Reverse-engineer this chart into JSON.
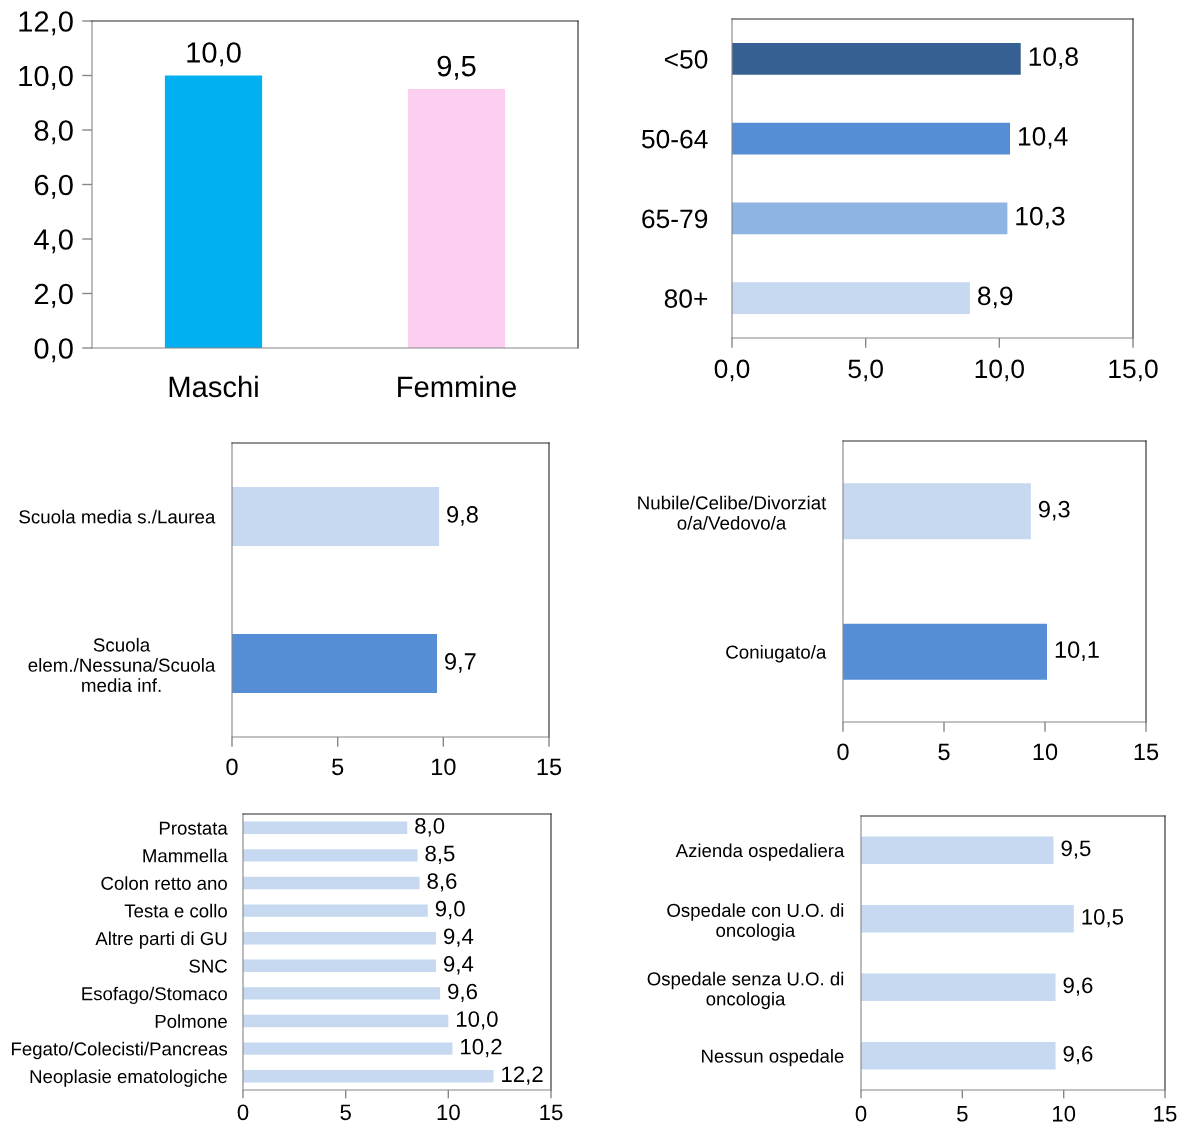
{
  "chart_data": [
    {
      "type": "bar",
      "categories": [
        "Maschi",
        "Femmine"
      ],
      "values": [
        10.0,
        9.5
      ],
      "colors": [
        "#00b0f0",
        "#fccff1"
      ],
      "value_labels": [
        "10,0",
        "9,5"
      ],
      "ylim": [
        0,
        12
      ],
      "yticks": [
        {
          "value": 0,
          "label": "0,0"
        },
        {
          "value": 2,
          "label": "2,0"
        },
        {
          "value": 4,
          "label": "4,0"
        },
        {
          "value": 6,
          "label": "6,0"
        },
        {
          "value": 8,
          "label": "8,0"
        },
        {
          "value": 10,
          "label": "10,0"
        },
        {
          "value": 12,
          "label": "12,0"
        }
      ]
    },
    {
      "type": "bar",
      "orientation": "horizontal",
      "categories": [
        "<50",
        "50-64",
        "65-79",
        "80+"
      ],
      "values": [
        10.8,
        10.4,
        10.3,
        8.9
      ],
      "colors": [
        "#366092",
        "#558ed5",
        "#8eb4e3",
        "#c6d9f1"
      ],
      "value_labels": [
        "10,8",
        "10,4",
        "10,3",
        "8,9"
      ],
      "xlim": [
        0,
        15
      ],
      "xticks": [
        {
          "value": 0,
          "label": "0,0"
        },
        {
          "value": 5,
          "label": "5,0"
        },
        {
          "value": 10,
          "label": "10,0"
        },
        {
          "value": 15,
          "label": "15,0"
        }
      ]
    },
    {
      "type": "bar",
      "orientation": "horizontal",
      "categories": [
        "Scuola media s./Laurea",
        "Scuola\nelem./Nessuna/Scuola\nmedia inf."
      ],
      "values": [
        9.8,
        9.7
      ],
      "colors": [
        "#c6d9f1",
        "#558ed5"
      ],
      "value_labels": [
        "9,8",
        "9,7"
      ],
      "xlim": [
        0,
        15
      ],
      "xticks": [
        0,
        5,
        10,
        15
      ]
    },
    {
      "type": "bar",
      "orientation": "horizontal",
      "categories": [
        "Nubile/Celibe/Divorziat\no/a/Vedovo/a",
        "Coniugato/a"
      ],
      "values": [
        9.3,
        10.1
      ],
      "colors": [
        "#c6d9f1",
        "#558ed5"
      ],
      "value_labels": [
        "9,3",
        "10,1"
      ],
      "xlim": [
        0,
        15
      ],
      "xticks": [
        0,
        5,
        10,
        15
      ]
    },
    {
      "type": "bar",
      "orientation": "horizontal",
      "categories": [
        "Prostata",
        "Mammella",
        "Colon retto ano",
        "Testa e collo",
        "Altre parti di GU",
        "SNC",
        "Esofago/Stomaco",
        "Polmone",
        "Fegato/Colecisti/Pancreas",
        "Neoplasie ematologiche"
      ],
      "values": [
        8.0,
        8.5,
        8.6,
        9.0,
        9.4,
        9.4,
        9.6,
        10.0,
        10.2,
        12.2
      ],
      "color": "#c6d9f1",
      "value_labels": [
        "8,0",
        "8,5",
        "8,6",
        "9,0",
        "9,4",
        "9,4",
        "9,6",
        "10,0",
        "10,2",
        "12,2"
      ],
      "xlim": [
        0,
        15
      ],
      "xticks": [
        0,
        5,
        10,
        15
      ]
    },
    {
      "type": "bar",
      "orientation": "horizontal",
      "categories": [
        "Azienda ospedaliera",
        "Ospedale con U.O. di\noncologia",
        "Ospedale senza U.O. di\noncologia",
        "Nessun ospedale"
      ],
      "values": [
        9.5,
        10.5,
        9.6,
        9.6
      ],
      "color": "#c6d9f1",
      "value_labels": [
        "9,5",
        "10,5",
        "9,6",
        "9,6"
      ],
      "xlim": [
        0,
        15
      ],
      "xticks": [
        0,
        5,
        10,
        15
      ]
    }
  ]
}
